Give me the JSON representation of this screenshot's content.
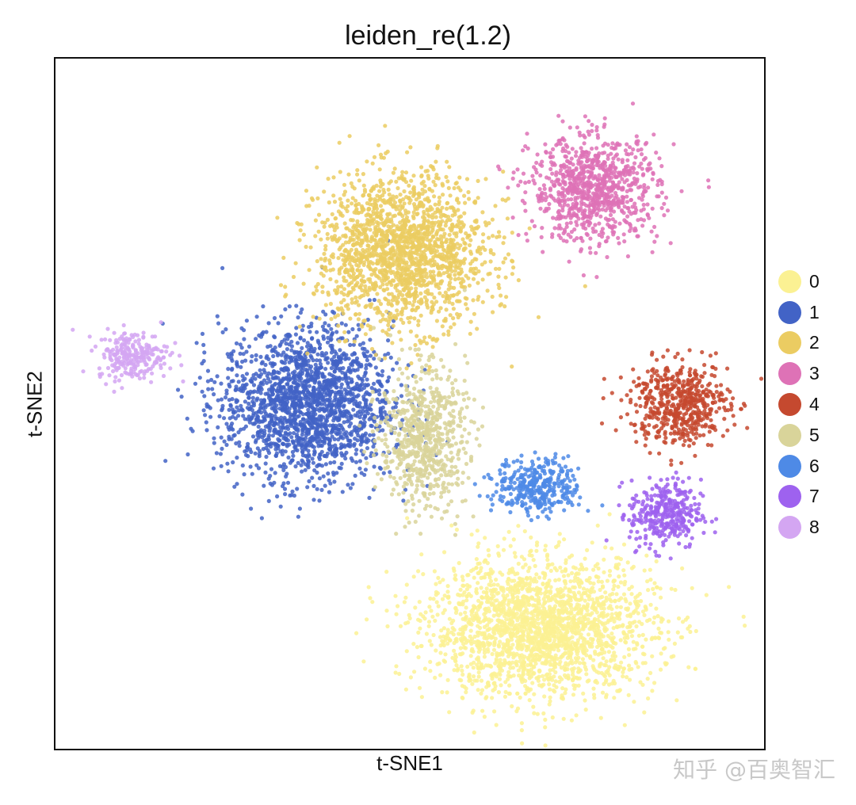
{
  "chart_data": {
    "type": "scatter",
    "title": "leiden_re(1.2)",
    "xlabel": "t-SNE1",
    "ylabel": "t-SNE2",
    "grid": false,
    "ticks": "none",
    "legend_placement": "right",
    "xlim": [
      0,
      100
    ],
    "ylim": [
      0,
      100
    ],
    "clusters": [
      {
        "name": "0",
        "color": "#fbf193",
        "center": [
          68.5,
          17.5
        ],
        "spread": [
          16,
          10
        ],
        "count": 2200
      },
      {
        "name": "1",
        "color": "#4263c6",
        "center": [
          35.5,
          50
        ],
        "spread": [
          12,
          11
        ],
        "count": 1900
      },
      {
        "name": "2",
        "color": "#ebcc62",
        "center": [
          49,
          72
        ],
        "spread": [
          12,
          11
        ],
        "count": 1800
      },
      {
        "name": "3",
        "color": "#de72b6",
        "center": [
          76,
          81
        ],
        "spread": [
          9,
          7.5
        ],
        "count": 900
      },
      {
        "name": "4",
        "color": "#c5492f",
        "center": [
          88,
          50
        ],
        "spread": [
          7,
          6
        ],
        "count": 550
      },
      {
        "name": "5",
        "color": "#d9d49a",
        "center": [
          52,
          45
        ],
        "spread": [
          6,
          10
        ],
        "count": 700
      },
      {
        "name": "6",
        "color": "#4e8ae6",
        "center": [
          68,
          38
        ],
        "spread": [
          6,
          4
        ],
        "count": 350
      },
      {
        "name": "7",
        "color": "#9e62ef",
        "center": [
          86,
          34
        ],
        "spread": [
          5,
          5
        ],
        "count": 350
      },
      {
        "name": "8",
        "color": "#d4a6f2",
        "center": [
          11,
          57
        ],
        "spread": [
          5,
          3.5
        ],
        "count": 250
      }
    ]
  },
  "watermark": "知乎 @百奥智汇"
}
